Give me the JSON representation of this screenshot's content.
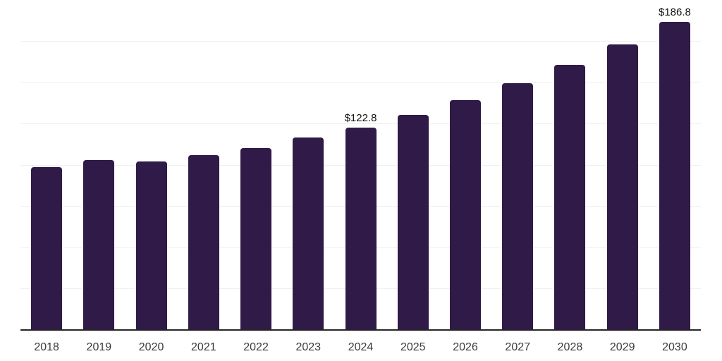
{
  "chart_data": {
    "type": "bar",
    "title": "",
    "xlabel": "",
    "ylabel": "",
    "categories": [
      "2018",
      "2019",
      "2020",
      "2021",
      "2022",
      "2023",
      "2024",
      "2025",
      "2026",
      "2027",
      "2028",
      "2029",
      "2030"
    ],
    "values": [
      99.1,
      103.1,
      102.5,
      106.2,
      110.3,
      117.0,
      122.8,
      130.7,
      139.5,
      149.5,
      160.6,
      173.1,
      186.8
    ],
    "point_labels": [
      "",
      "",
      "",
      "",
      "",
      "",
      "$122.8",
      "",
      "",
      "",
      "",
      "",
      "$186.8"
    ],
    "ylim": [
      0,
      200
    ],
    "gridline_step": 25,
    "grid": true,
    "legend_position": "none",
    "colors": {
      "bar": "#2f1a48",
      "grid": "#efeff1",
      "axis": "#262626",
      "tick_label": "#3b3b3b",
      "point_label": "#111111",
      "background": "#ffffff"
    }
  }
}
